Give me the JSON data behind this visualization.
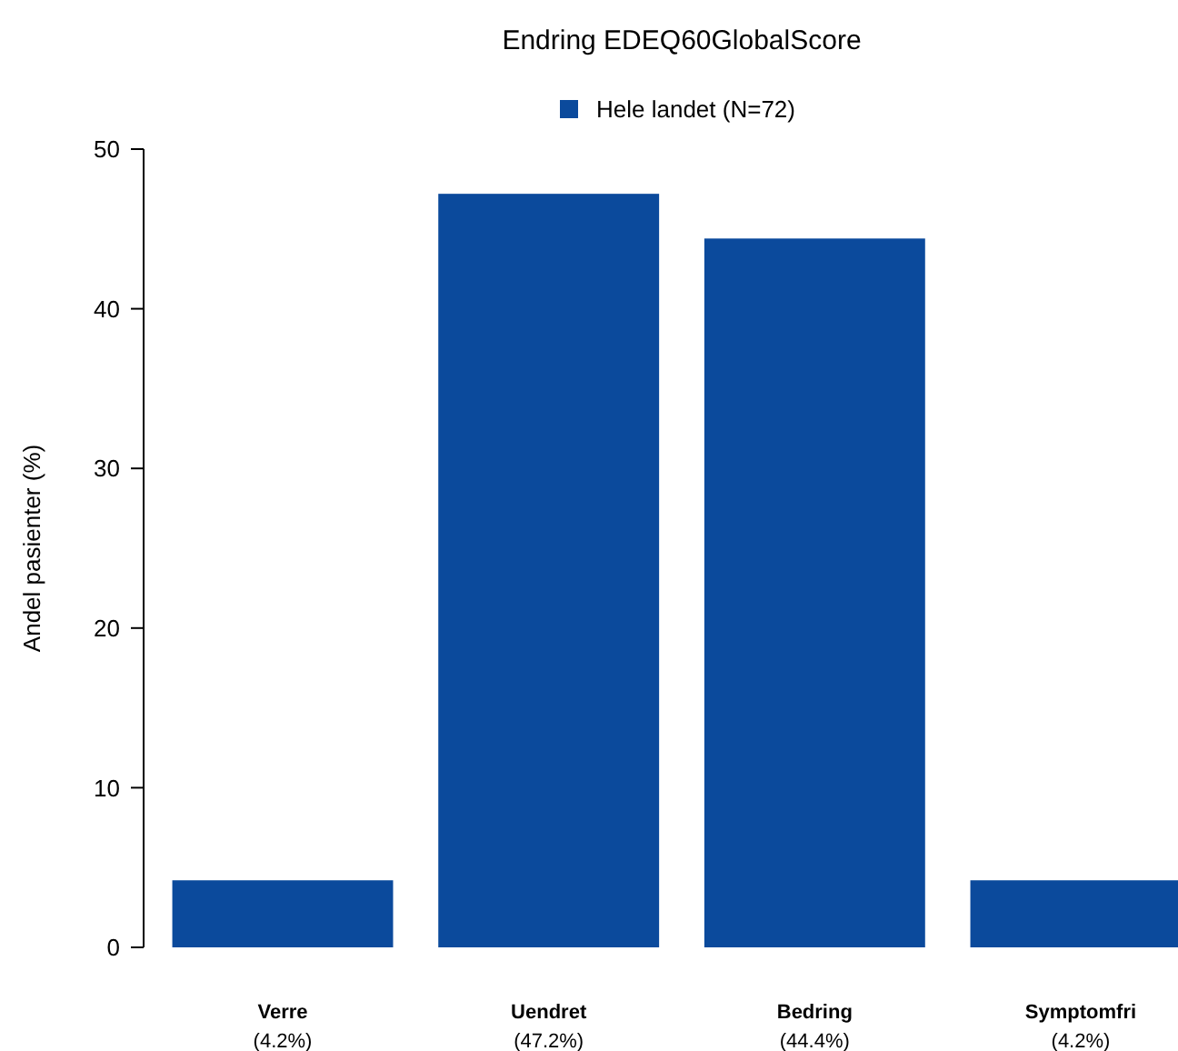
{
  "chart_data": {
    "type": "bar",
    "title": "Endring EDEQ60GlobalScore",
    "ylabel": "Andel pasienter (%)",
    "categories": [
      "Verre",
      "Uendret",
      "Bedring",
      "Symptomfri"
    ],
    "series": [
      {
        "name": "Hele landet (N=72)",
        "color": "#0b4a9c",
        "values": [
          4.2,
          47.2,
          44.4,
          4.2
        ],
        "value_labels": [
          "(4.2%)",
          "(47.2%)",
          "(44.4%)",
          "(4.2%)"
        ]
      }
    ],
    "ylim": [
      0,
      50
    ],
    "yticks": [
      0,
      10,
      20,
      30,
      40,
      50
    ],
    "grid": false,
    "legend": "top"
  }
}
